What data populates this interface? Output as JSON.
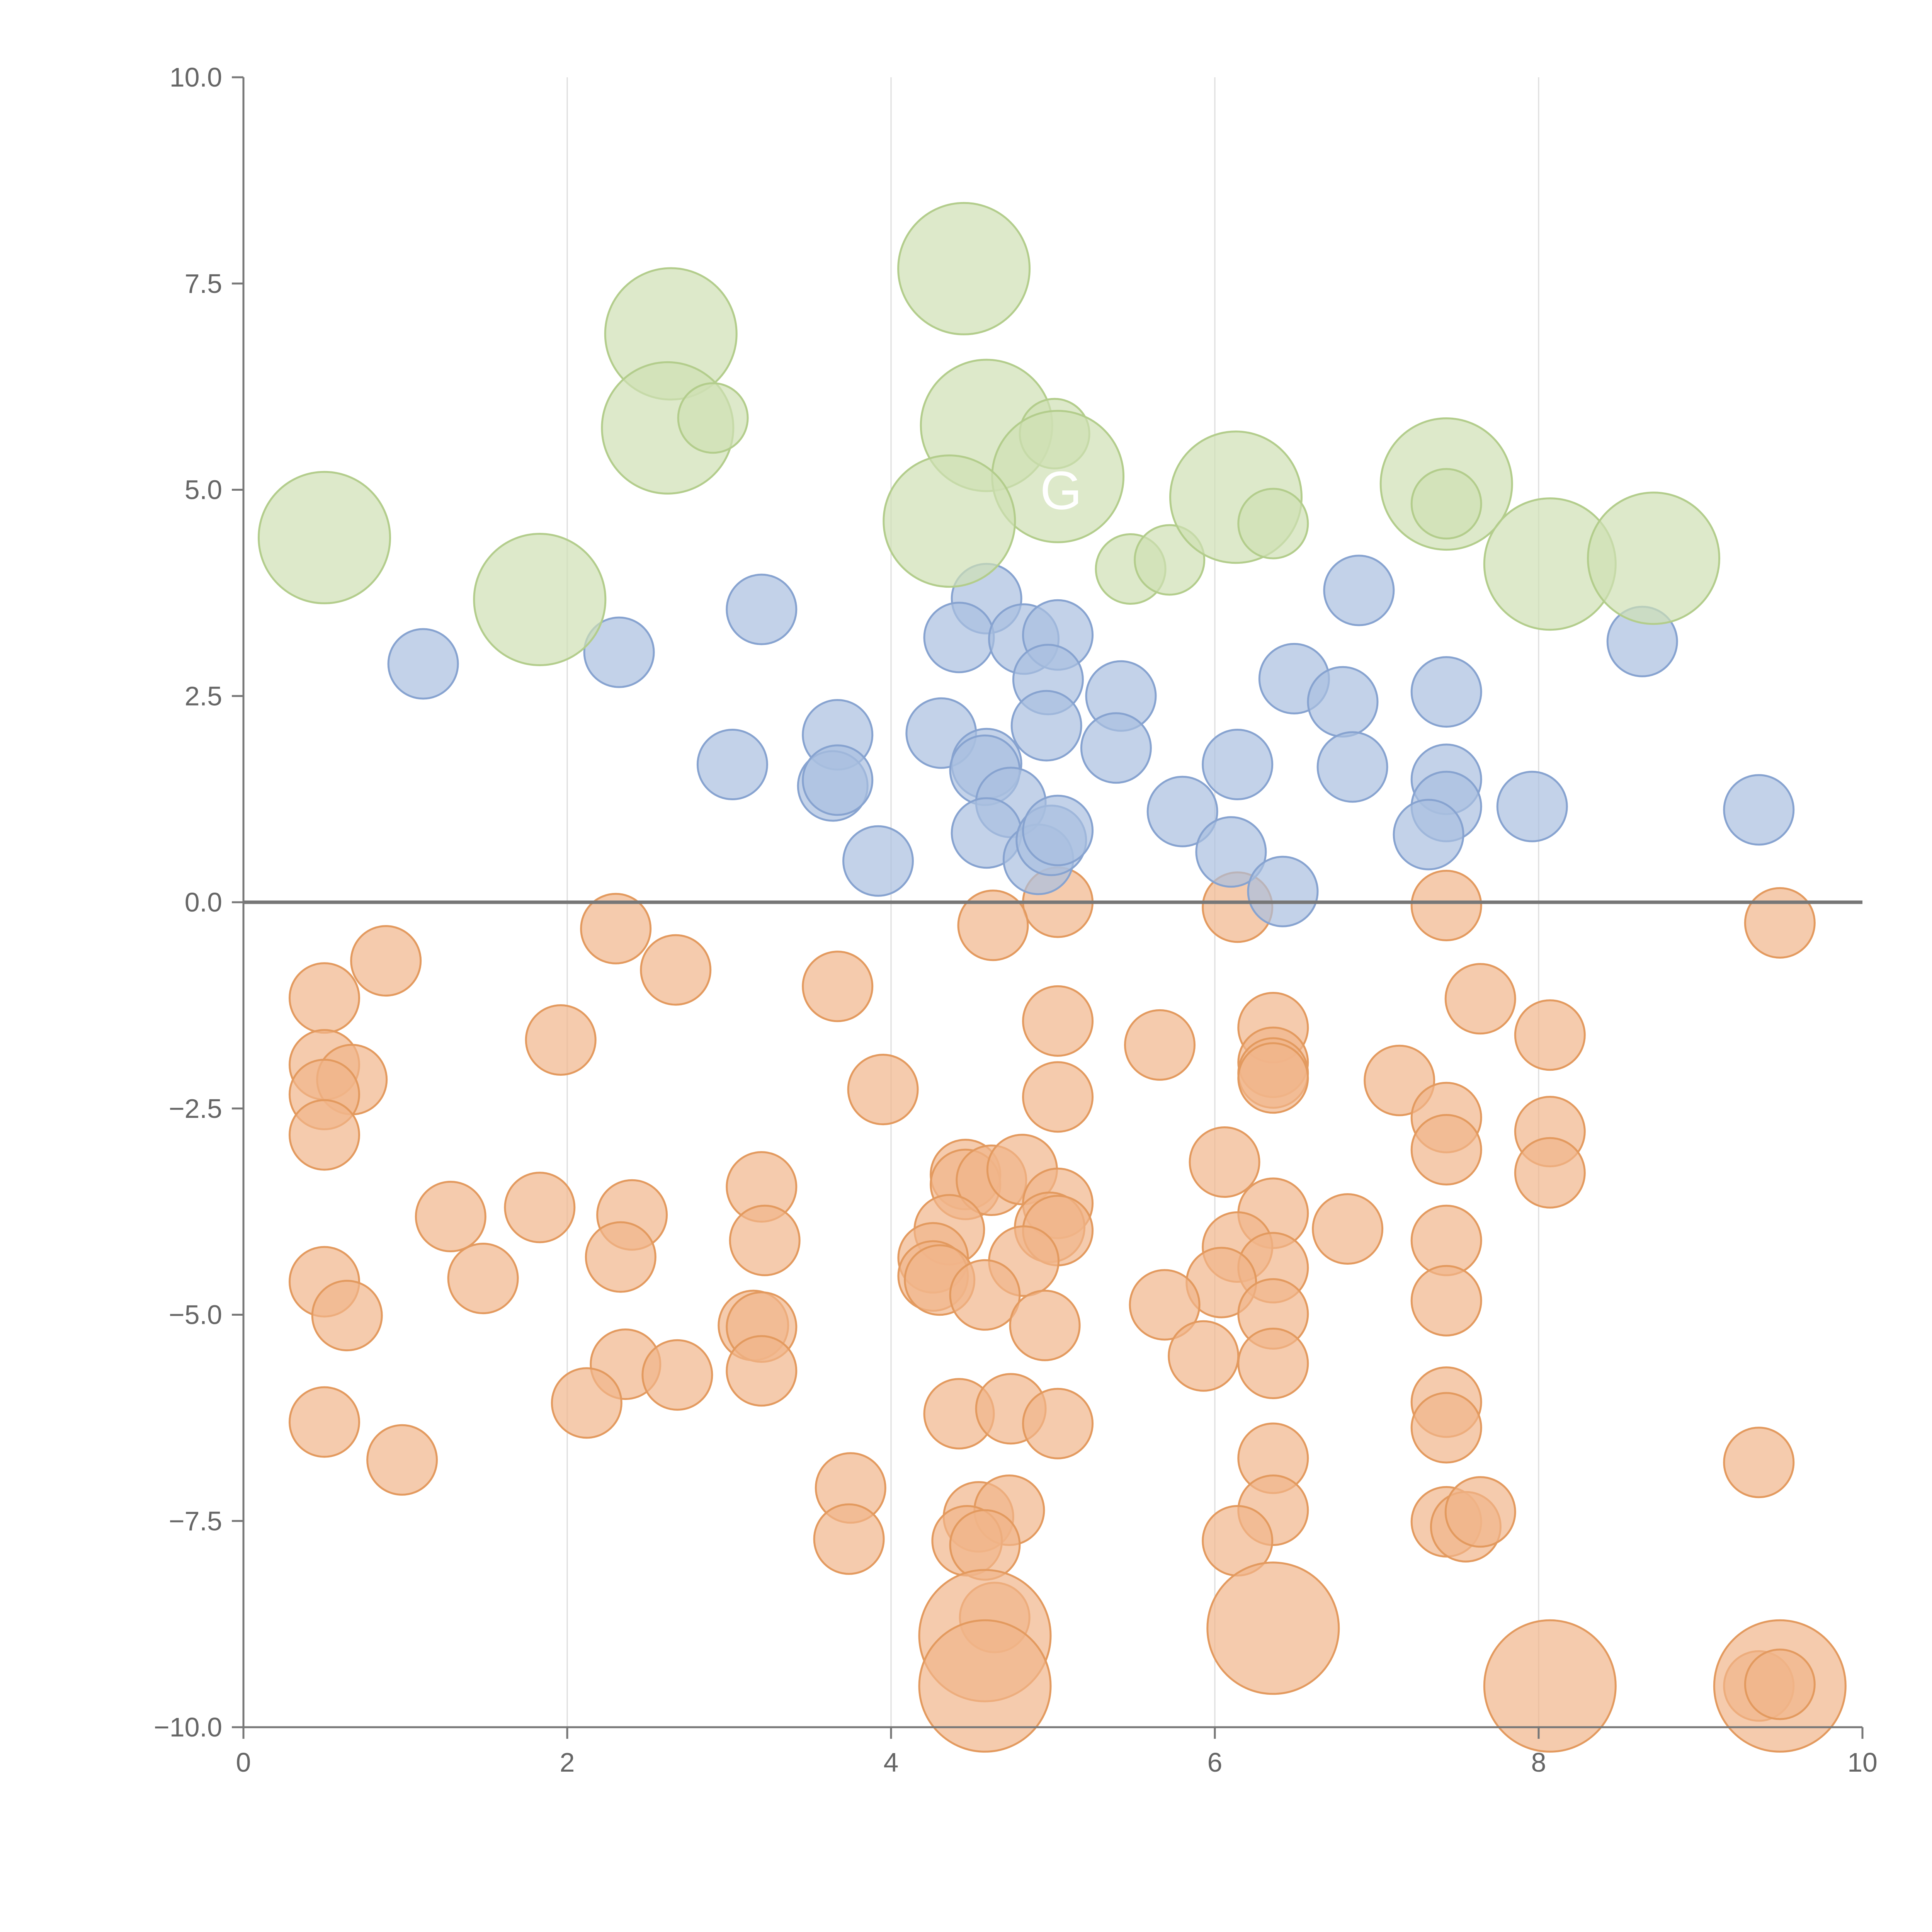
{
  "chart_data": {
    "type": "scatter",
    "title": "",
    "xlabel": "",
    "ylabel": "",
    "xlim": [
      0,
      10
    ],
    "ylim": [
      -10,
      10
    ],
    "x_ticks": [
      0,
      2,
      4,
      6,
      8,
      10
    ],
    "y_ticks": [
      -10,
      -7.5,
      -5,
      -2.5,
      0,
      2.5,
      5,
      7.5,
      10
    ],
    "x_tick_labels": [
      "0",
      "2",
      "4",
      "6",
      "8",
      "10"
    ],
    "y_tick_labels": [
      "−10.0",
      "−7.5",
      "−5.0",
      "−2.5",
      "0.0",
      "2.5",
      "5.0",
      "7.5",
      "10.0"
    ],
    "grid": "vertical",
    "zero_line": true,
    "legend": "none",
    "annotations": [
      {
        "text": "G",
        "x": 5.05,
        "y": 5.0
      }
    ],
    "series": [
      {
        "color": "#f1b58a",
        "stroke": "#e39a5f",
        "points": [
          [
            5.03,
            0.0,
            0.45
          ],
          [
            4.63,
            -0.28,
            0.45
          ],
          [
            6.14,
            -0.06,
            0.45
          ],
          [
            7.43,
            -0.04,
            0.45
          ],
          [
            9.49,
            -0.25,
            0.45
          ],
          [
            2.3,
            -0.32,
            0.45
          ],
          [
            0.88,
            -0.71,
            0.45
          ],
          [
            2.67,
            -0.82,
            0.45
          ],
          [
            3.67,
            -1.02,
            0.45
          ],
          [
            0.5,
            -1.16,
            0.45
          ],
          [
            1.96,
            -1.67,
            0.45
          ],
          [
            5.03,
            -1.44,
            0.45
          ],
          [
            5.66,
            -1.73,
            0.45
          ],
          [
            6.36,
            -1.52,
            0.45
          ],
          [
            7.64,
            -1.17,
            0.45
          ],
          [
            8.07,
            -1.61,
            0.45
          ],
          [
            0.5,
            -1.97,
            0.45
          ],
          [
            0.67,
            -2.15,
            0.45
          ],
          [
            0.5,
            -2.33,
            0.45
          ],
          [
            3.95,
            -2.27,
            0.45
          ],
          [
            5.03,
            -2.36,
            0.45
          ],
          [
            6.36,
            -1.94,
            0.45
          ],
          [
            6.36,
            -2.07,
            0.45
          ],
          [
            6.36,
            -2.13,
            0.45
          ],
          [
            7.14,
            -2.16,
            0.45
          ],
          [
            7.43,
            -2.61,
            0.45
          ],
          [
            0.5,
            -2.82,
            0.45
          ],
          [
            7.43,
            -3.0,
            0.45
          ],
          [
            8.07,
            -2.78,
            0.45
          ],
          [
            6.06,
            -3.15,
            0.45
          ],
          [
            8.07,
            -3.28,
            0.45
          ],
          [
            4.46,
            -3.3,
            0.45
          ],
          [
            4.46,
            -3.42,
            0.45
          ],
          [
            4.62,
            -3.37,
            0.45
          ],
          [
            4.81,
            -3.24,
            0.45
          ],
          [
            3.2,
            -3.45,
            0.45
          ],
          [
            1.28,
            -3.81,
            0.45
          ],
          [
            1.83,
            -3.7,
            0.45
          ],
          [
            2.4,
            -3.79,
            0.45
          ],
          [
            5.03,
            -3.65,
            0.45
          ],
          [
            6.36,
            -3.77,
            0.45
          ],
          [
            4.36,
            -3.97,
            0.45
          ],
          [
            4.98,
            -3.94,
            0.45
          ],
          [
            5.03,
            -3.98,
            0.45
          ],
          [
            6.82,
            -3.96,
            0.45
          ],
          [
            3.22,
            -4.1,
            0.45
          ],
          [
            6.14,
            -4.18,
            0.45
          ],
          [
            7.43,
            -4.1,
            0.45
          ],
          [
            2.33,
            -4.3,
            0.45
          ],
          [
            4.26,
            -4.31,
            0.45
          ],
          [
            4.82,
            -4.35,
            0.45
          ],
          [
            6.36,
            -4.43,
            0.45
          ],
          [
            1.48,
            -4.56,
            0.45
          ],
          [
            4.26,
            -4.53,
            0.45
          ],
          [
            4.3,
            -4.58,
            0.45
          ],
          [
            0.5,
            -4.6,
            0.45
          ],
          [
            6.04,
            -4.61,
            0.45
          ],
          [
            4.58,
            -4.76,
            0.45
          ],
          [
            7.43,
            -4.83,
            0.45
          ],
          [
            5.69,
            -4.88,
            0.45
          ],
          [
            0.64,
            -5.01,
            0.45
          ],
          [
            6.36,
            -4.99,
            0.45
          ],
          [
            3.15,
            -5.13,
            0.45
          ],
          [
            3.2,
            -5.15,
            0.45
          ],
          [
            4.95,
            -5.13,
            0.45
          ],
          [
            5.93,
            -5.5,
            0.45
          ],
          [
            2.36,
            -5.6,
            0.45
          ],
          [
            2.68,
            -5.73,
            0.45
          ],
          [
            3.2,
            -5.68,
            0.45
          ],
          [
            6.36,
            -5.59,
            0.45
          ],
          [
            2.12,
            -6.07,
            0.45
          ],
          [
            4.42,
            -6.2,
            0.45
          ],
          [
            4.74,
            -6.14,
            0.45
          ],
          [
            7.43,
            -6.06,
            0.45
          ],
          [
            0.5,
            -6.3,
            0.45
          ],
          [
            5.03,
            -6.32,
            0.45
          ],
          [
            7.43,
            -6.37,
            0.45
          ],
          [
            0.98,
            -6.76,
            0.45
          ],
          [
            6.36,
            -6.74,
            0.45
          ],
          [
            9.36,
            -6.79,
            0.45
          ],
          [
            3.75,
            -7.1,
            0.45
          ],
          [
            6.36,
            -7.37,
            0.45
          ],
          [
            4.54,
            -7.45,
            0.45
          ],
          [
            4.73,
            -7.37,
            0.45
          ],
          [
            7.43,
            -7.51,
            0.45
          ],
          [
            7.55,
            -7.57,
            0.45
          ],
          [
            7.64,
            -7.39,
            0.45
          ],
          [
            3.74,
            -7.72,
            0.45
          ],
          [
            4.47,
            -7.74,
            0.45
          ],
          [
            4.58,
            -7.79,
            0.45
          ],
          [
            6.14,
            -7.74,
            0.45
          ],
          [
            4.64,
            -8.67,
            0.45
          ],
          [
            4.58,
            -8.89,
            0.85
          ],
          [
            6.36,
            -8.8,
            0.85
          ],
          [
            4.58,
            -9.5,
            0.85
          ],
          [
            8.07,
            -9.5,
            0.85
          ],
          [
            9.36,
            -9.5,
            0.45
          ],
          [
            9.49,
            -9.5,
            0.85
          ],
          [
            9.49,
            -9.48,
            0.45
          ]
        ]
      },
      {
        "color": "#a9bfe0",
        "stroke": "#87a3d0",
        "points": [
          [
            1.11,
            2.89,
            0.45
          ],
          [
            2.32,
            3.03,
            0.45
          ],
          [
            3.2,
            3.55,
            0.45
          ],
          [
            4.59,
            3.68,
            0.45
          ],
          [
            4.42,
            3.21,
            0.45
          ],
          [
            4.82,
            3.19,
            0.45
          ],
          [
            5.03,
            3.24,
            0.45
          ],
          [
            6.89,
            3.78,
            0.45
          ],
          [
            8.64,
            3.16,
            0.45
          ],
          [
            3.02,
            1.67,
            0.45
          ],
          [
            3.67,
            2.03,
            0.45
          ],
          [
            4.31,
            2.05,
            0.45
          ],
          [
            4.97,
            2.7,
            0.45
          ],
          [
            4.96,
            2.14,
            0.45
          ],
          [
            5.42,
            2.5,
            0.45
          ],
          [
            6.49,
            2.71,
            0.45
          ],
          [
            6.79,
            2.43,
            0.45
          ],
          [
            7.43,
            2.55,
            0.45
          ],
          [
            3.64,
            1.41,
            0.45
          ],
          [
            3.67,
            1.48,
            0.45
          ],
          [
            4.59,
            1.68,
            0.45
          ],
          [
            4.58,
            1.6,
            0.45
          ],
          [
            4.74,
            1.21,
            0.45
          ],
          [
            5.39,
            1.87,
            0.45
          ],
          [
            6.14,
            1.67,
            0.45
          ],
          [
            6.85,
            1.64,
            0.45
          ],
          [
            7.43,
            1.49,
            0.45
          ],
          [
            7.43,
            1.16,
            0.45
          ],
          [
            7.96,
            1.16,
            0.45
          ],
          [
            9.36,
            1.12,
            0.45
          ],
          [
            5.8,
            1.1,
            0.45
          ],
          [
            3.92,
            0.5,
            0.45
          ],
          [
            4.59,
            0.84,
            0.45
          ],
          [
            4.91,
            0.52,
            0.45
          ],
          [
            4.99,
            0.75,
            0.45
          ],
          [
            5.03,
            0.87,
            0.45
          ],
          [
            6.1,
            0.61,
            0.45
          ],
          [
            6.42,
            0.13,
            0.45
          ],
          [
            7.32,
            0.82,
            0.45
          ]
        ]
      },
      {
        "color": "#cfe0b4",
        "stroke": "#b3cd8c",
        "points": [
          [
            4.45,
            7.68,
            0.85
          ],
          [
            2.64,
            6.89,
            0.85
          ],
          [
            2.62,
            5.75,
            0.85
          ],
          [
            2.9,
            5.87,
            0.45
          ],
          [
            4.59,
            5.78,
            0.85
          ],
          [
            5.01,
            5.68,
            0.45
          ],
          [
            5.03,
            5.16,
            0.85
          ],
          [
            0.5,
            4.42,
            0.85
          ],
          [
            1.83,
            3.67,
            0.85
          ],
          [
            4.36,
            4.62,
            0.85
          ],
          [
            5.48,
            4.04,
            0.45
          ],
          [
            5.72,
            4.15,
            0.45
          ],
          [
            6.13,
            4.91,
            0.85
          ],
          [
            6.36,
            4.59,
            0.45
          ],
          [
            7.43,
            5.07,
            0.85
          ],
          [
            7.43,
            4.83,
            0.45
          ],
          [
            8.07,
            4.1,
            0.85
          ],
          [
            8.71,
            4.17,
            0.85
          ]
        ]
      }
    ]
  }
}
